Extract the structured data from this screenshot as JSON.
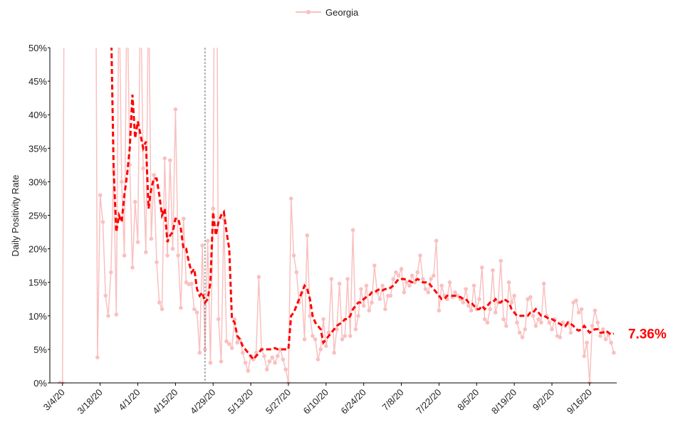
{
  "chart_data": {
    "type": "line",
    "y_label": "Daily Positivity Rate",
    "categories": [
      "3/3/20",
      "3/4/20",
      "3/5/20",
      "3/6/20",
      "3/7/20",
      "3/8/20",
      "3/9/20",
      "3/10/20",
      "3/11/20",
      "3/12/20",
      "3/13/20",
      "3/14/20",
      "3/15/20",
      "3/16/20",
      "3/17/20",
      "3/18/20",
      "3/19/20",
      "3/20/20",
      "3/21/20",
      "3/22/20",
      "3/23/20",
      "3/24/20",
      "3/25/20",
      "3/26/20",
      "3/27/20",
      "3/28/20",
      "3/29/20",
      "3/30/20",
      "3/31/20",
      "4/1/20",
      "4/2/20",
      "4/3/20",
      "4/4/20",
      "4/5/20",
      "4/6/20",
      "4/7/20",
      "4/8/20",
      "4/9/20",
      "4/10/20",
      "4/11/20",
      "4/12/20",
      "4/13/20",
      "4/14/20",
      "4/15/20",
      "4/16/20",
      "4/17/20",
      "4/18/20",
      "4/19/20",
      "4/20/20",
      "4/21/20",
      "4/22/20",
      "4/23/20",
      "4/24/20",
      "4/25/20",
      "4/26/20",
      "4/27/20",
      "4/28/20",
      "4/29/20",
      "4/30/20",
      "5/1/20",
      "5/2/20",
      "5/3/20",
      "5/4/20",
      "5/5/20",
      "5/6/20",
      "5/7/20",
      "5/8/20",
      "5/9/20",
      "5/10/20",
      "5/11/20",
      "5/12/20",
      "5/13/20",
      "5/14/20",
      "5/15/20",
      "5/16/20",
      "5/17/20",
      "5/18/20",
      "5/19/20",
      "5/20/20",
      "5/21/20",
      "5/22/20",
      "5/23/20",
      "5/24/20",
      "5/25/20",
      "5/26/20",
      "5/27/20",
      "5/28/20",
      "5/29/20",
      "5/30/20",
      "5/31/20",
      "6/1/20",
      "6/2/20",
      "6/3/20",
      "6/4/20",
      "6/5/20",
      "6/6/20",
      "6/7/20",
      "6/8/20",
      "6/9/20",
      "6/10/20",
      "6/11/20",
      "6/12/20",
      "6/13/20",
      "6/14/20",
      "6/15/20",
      "6/16/20",
      "6/17/20",
      "6/18/20",
      "6/19/20",
      "6/20/20",
      "6/21/20",
      "6/22/20",
      "6/23/20",
      "6/24/20",
      "6/25/20",
      "6/26/20",
      "6/27/20",
      "6/28/20",
      "6/29/20",
      "6/30/20",
      "7/1/20",
      "7/2/20",
      "7/3/20",
      "7/4/20",
      "7/5/20",
      "7/6/20",
      "7/7/20",
      "7/8/20",
      "7/9/20",
      "7/10/20",
      "7/11/20",
      "7/12/20",
      "7/13/20",
      "7/14/20",
      "7/15/20",
      "7/16/20",
      "7/17/20",
      "7/18/20",
      "7/19/20",
      "7/20/20",
      "7/21/20",
      "7/22/20",
      "7/23/20",
      "7/24/20",
      "7/25/20",
      "7/26/20",
      "7/27/20",
      "7/28/20",
      "7/29/20",
      "7/30/20",
      "7/31/20",
      "8/1/20",
      "8/2/20",
      "8/3/20",
      "8/4/20",
      "8/5/20",
      "8/6/20",
      "8/7/20",
      "8/8/20",
      "8/9/20",
      "8/10/20",
      "8/11/20",
      "8/12/20",
      "8/13/20",
      "8/14/20",
      "8/15/20",
      "8/16/20",
      "8/17/20",
      "8/18/20",
      "8/19/20",
      "8/20/20",
      "8/21/20",
      "8/22/20",
      "8/23/20",
      "8/24/20",
      "8/25/20",
      "8/26/20",
      "8/27/20",
      "8/28/20",
      "8/29/20",
      "8/30/20",
      "8/31/20",
      "9/1/20",
      "9/2/20",
      "9/3/20",
      "9/4/20",
      "9/5/20",
      "9/6/20",
      "9/7/20",
      "9/8/20",
      "9/9/20",
      "9/10/20",
      "9/11/20",
      "9/12/20",
      "9/13/20",
      "9/14/20",
      "9/15/20",
      "9/16/20",
      "9/17/20",
      "9/18/20",
      "9/19/20",
      "9/20/20",
      "9/21/20",
      "9/22/20",
      "9/23/20",
      "9/24/20",
      "9/25/20"
    ],
    "series": [
      {
        "name": "Georgia",
        "color": "#f9c0c0",
        "marker": true,
        "values": [
          0,
          0,
          100,
          null,
          null,
          null,
          null,
          null,
          null,
          null,
          null,
          null,
          null,
          100,
          3.8,
          28,
          24,
          13,
          10,
          16.5,
          31.8,
          10.2,
          60,
          30,
          19,
          60,
          32.5,
          17.2,
          27,
          21,
          60,
          32,
          19.5,
          60,
          21.5,
          31,
          18,
          12,
          11,
          33.5,
          19,
          33.2,
          20,
          40.8,
          19,
          11.2,
          24.5,
          15,
          14.7,
          14.8,
          11,
          10.5,
          4.5,
          20.5,
          5,
          21.2,
          3,
          26,
          100,
          9.5,
          3.2,
          24.5,
          6.2,
          5.8,
          5.2,
          9.5,
          6,
          6.5,
          4.5,
          3,
          1.8,
          4,
          3.5,
          4.5,
          15.8,
          5,
          4,
          2,
          3.2,
          3.8,
          3,
          4,
          5,
          3.5,
          2,
          0,
          27.5,
          19,
          16.5,
          12,
          13.5,
          6.5,
          22,
          10,
          7,
          6.5,
          3.5,
          5,
          9.5,
          5.5,
          7.5,
          15.5,
          4.5,
          8,
          14.8,
          6.5,
          7,
          15.5,
          7,
          22.8,
          8,
          10,
          14,
          11.5,
          14.5,
          10.8,
          12,
          17.5,
          13.5,
          12.5,
          14.5,
          11,
          13,
          13,
          15.5,
          16.5,
          16,
          17,
          13.5,
          15,
          14.5,
          16,
          15,
          16.5,
          19,
          15.5,
          14,
          13.5,
          15.5,
          16,
          21.2,
          10.8,
          14.5,
          13,
          12.5,
          15,
          12.8,
          13.5,
          13,
          12.5,
          12,
          14,
          11.5,
          10.8,
          14.5,
          11,
          12.5,
          17.2,
          9.5,
          9,
          11,
          16.8,
          10.5,
          12,
          18.2,
          9.5,
          8.5,
          15,
          12,
          13,
          9,
          7.5,
          6.8,
          8,
          12.5,
          12.8,
          10,
          8.5,
          9.5,
          9,
          14.8,
          10,
          9,
          8,
          9.5,
          7,
          6.8,
          9,
          8.5,
          9,
          7.5,
          12,
          12.3,
          10.5,
          11,
          4,
          6,
          0,
          8.5,
          10.8,
          9,
          7,
          8,
          6.5,
          7.2,
          6,
          4.5
        ]
      },
      {
        "color": "#ff0000",
        "dashed": true,
        "end_label": "7.36%",
        "values": [
          null,
          null,
          null,
          null,
          null,
          null,
          null,
          null,
          null,
          null,
          null,
          null,
          null,
          null,
          null,
          null,
          null,
          null,
          null,
          55,
          32,
          22.5,
          25,
          24,
          28,
          31,
          35,
          43,
          36.5,
          39,
          37,
          35,
          36,
          26,
          29,
          30.5,
          30.5,
          28,
          25,
          26,
          21,
          22,
          22.5,
          24.5,
          24.5,
          23,
          20,
          20,
          18,
          16.5,
          17,
          14,
          13,
          13.5,
          12,
          12.5,
          15,
          25.5,
          22,
          24,
          25,
          25.5,
          22.5,
          20,
          9.5,
          9,
          7,
          6.5,
          5.5,
          5,
          4.5,
          4,
          3.5,
          4,
          4.5,
          5,
          5,
          5,
          5,
          5,
          5.2,
          5,
          5,
          5,
          5,
          5,
          10,
          10.5,
          11.5,
          12.5,
          13.5,
          14.5,
          14,
          12.5,
          10,
          9,
          8.5,
          8,
          6,
          6.5,
          7,
          7.5,
          8,
          8.5,
          8.8,
          9,
          9.5,
          9.5,
          10,
          11,
          11.5,
          12,
          12,
          12.5,
          12.8,
          13,
          13.5,
          13.5,
          13.8,
          14,
          13.8,
          14,
          14,
          14.2,
          14.5,
          15,
          15.5,
          15.5,
          15.5,
          15.3,
          15.2,
          15,
          15.2,
          15.5,
          15.3,
          15,
          15,
          15,
          14.5,
          14,
          13.5,
          13,
          12.5,
          12.5,
          13,
          13,
          13,
          13,
          12.8,
          12.8,
          12.5,
          12.5,
          12,
          12,
          11.5,
          11,
          11,
          11.5,
          11,
          11.5,
          12,
          12,
          12.5,
          12,
          12,
          12.5,
          12.3,
          12,
          11,
          10.5,
          10,
          10,
          10,
          10,
          10,
          10.5,
          10.5,
          11,
          10.5,
          10,
          10,
          9.8,
          9.5,
          9.5,
          9.3,
          9,
          8.8,
          8.5,
          8.5,
          9,
          8.8,
          8.5,
          8,
          7.8,
          8,
          8.5,
          8,
          7.5,
          7.8,
          8,
          8,
          7.5,
          7.5,
          7.8,
          7.5,
          7.2,
          7.36
        ]
      }
    ],
    "xticks": [
      "3/4/20",
      "3/18/20",
      "4/1/20",
      "4/15/20",
      "4/29/20",
      "5/13/20",
      "5/27/20",
      "6/10/20",
      "6/24/20",
      "7/8/20",
      "7/22/20",
      "8/5/20",
      "8/19/20",
      "9/2/20",
      "9/16/20"
    ],
    "vline": "4/26/20",
    "ylim": [
      0,
      50
    ],
    "yticks": [
      {
        "value": 0,
        "label": "0%"
      },
      {
        "value": 5,
        "label": "5%"
      },
      {
        "value": 10,
        "label": "10%"
      },
      {
        "value": 15,
        "label": "15%"
      },
      {
        "value": 20,
        "label": "20%"
      },
      {
        "value": 25,
        "label": "25%"
      },
      {
        "value": 30,
        "label": "30%"
      },
      {
        "value": 35,
        "label": "35%"
      },
      {
        "value": 40,
        "label": "40%"
      },
      {
        "value": 45,
        "label": "45%"
      },
      {
        "value": 50,
        "label": "50%"
      }
    ],
    "legend": "top"
  }
}
